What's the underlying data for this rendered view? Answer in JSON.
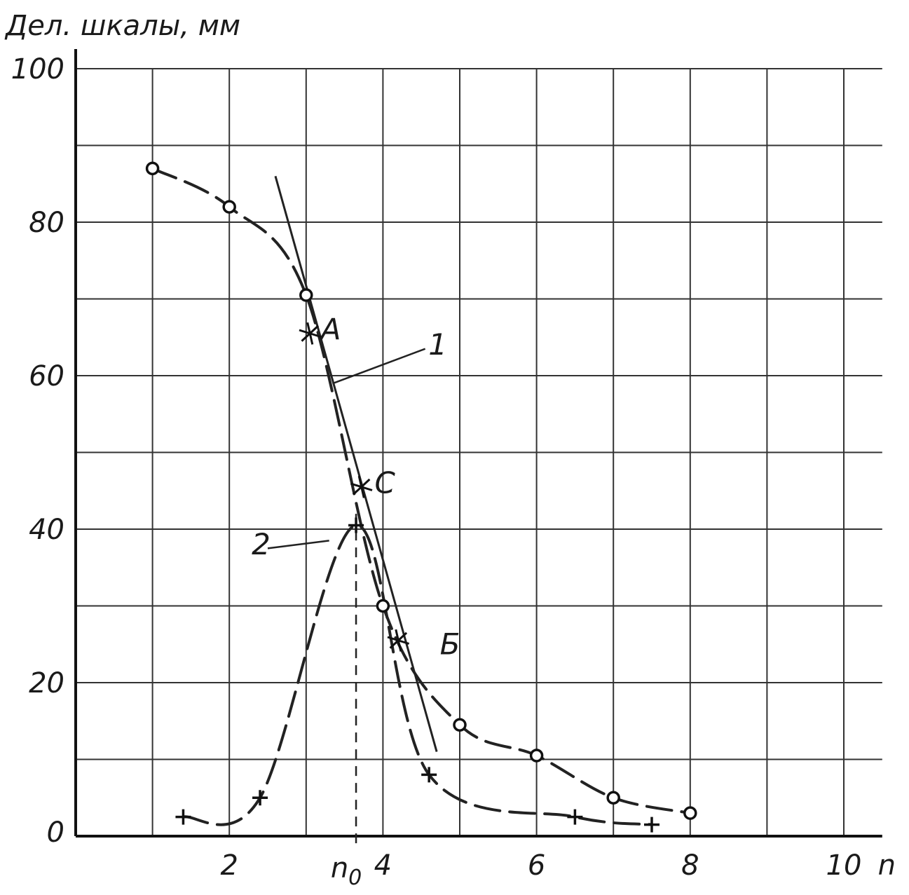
{
  "chart_data": {
    "type": "line",
    "ylabel": "Дел. шкалы, мм",
    "xlabel": "n",
    "xlim": [
      0,
      10.5
    ],
    "ylim": [
      0,
      100
    ],
    "x_ticks": [
      {
        "value": 2,
        "label": "2"
      },
      {
        "value": 4,
        "label": "4"
      },
      {
        "value": 6,
        "label": "6"
      },
      {
        "value": 8,
        "label": "8"
      },
      {
        "value": 10,
        "label": "10"
      }
    ],
    "y_ticks": [
      {
        "value": 0,
        "label": "0"
      },
      {
        "value": 20,
        "label": "20"
      },
      {
        "value": 40,
        "label": "40"
      },
      {
        "value": 60,
        "label": "60"
      },
      {
        "value": 80,
        "label": "80"
      },
      {
        "value": 100,
        "label": "100"
      }
    ],
    "grid": true,
    "series": [
      {
        "name": "1",
        "marker": "circle",
        "style": "dashed",
        "points": [
          [
            1,
            87
          ],
          [
            2,
            82
          ],
          [
            3,
            70.5
          ],
          [
            4,
            30
          ],
          [
            5,
            14.5
          ],
          [
            6,
            10.5
          ],
          [
            7,
            5
          ],
          [
            8,
            3
          ]
        ]
      },
      {
        "name": "2",
        "marker": "plus",
        "style": "dashed",
        "points": [
          [
            1.4,
            2.5
          ],
          [
            2.4,
            5
          ],
          [
            3.65,
            40.5
          ],
          [
            4.6,
            8
          ],
          [
            6.5,
            2.5
          ],
          [
            7.5,
            1.5
          ]
        ]
      }
    ],
    "tangent_line": {
      "from": [
        2.6,
        86
      ],
      "to": [
        4.7,
        11
      ]
    },
    "n0_marker": {
      "x": 3.65,
      "label": "n",
      "subscript": "0"
    },
    "annotations": [
      {
        "text": "A",
        "x": 3.1,
        "y": 66
      },
      {
        "text": "C",
        "x": 3.8,
        "y": 46
      },
      {
        "text": "Б",
        "x": 4.65,
        "y": 25
      },
      {
        "text": "1",
        "x": 4.5,
        "y": 64
      },
      {
        "text": "2",
        "x": 2.2,
        "y": 38
      }
    ]
  }
}
